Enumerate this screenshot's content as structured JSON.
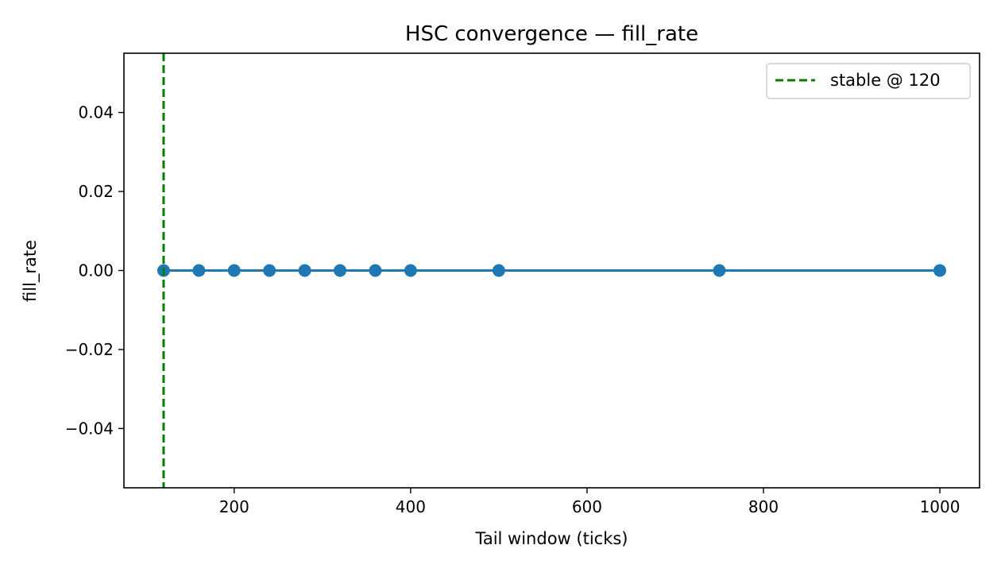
{
  "chart_data": {
    "type": "line",
    "title": "HSC convergence — fill_rate",
    "xlabel": "Tail window (ticks)",
    "ylabel": "fill_rate",
    "xlim": [
      75,
      1045
    ],
    "ylim": [
      -0.055,
      0.055
    ],
    "x_ticks": [
      200,
      400,
      600,
      800,
      1000
    ],
    "x_tick_labels": [
      "200",
      "400",
      "600",
      "800",
      "1000"
    ],
    "y_ticks": [
      0.04,
      0.02,
      0.0,
      -0.02,
      -0.04
    ],
    "y_tick_labels": [
      "0.04",
      "0.02",
      "0.00",
      "−0.02",
      "−0.04"
    ],
    "grid": false,
    "legend_position": "top-right",
    "series": [
      {
        "x": [
          120,
          160,
          200,
          240,
          280,
          320,
          360,
          400,
          500,
          750,
          1000
        ],
        "y": [
          0,
          0,
          0,
          0,
          0,
          0,
          0,
          0,
          0,
          0,
          0
        ],
        "color": "#1f77b4",
        "marker": "circle"
      }
    ],
    "reference_lines": [
      {
        "orientation": "vertical",
        "x": 120,
        "style": "dashed",
        "color": "#007f00",
        "label": "stable @ 120"
      }
    ]
  }
}
